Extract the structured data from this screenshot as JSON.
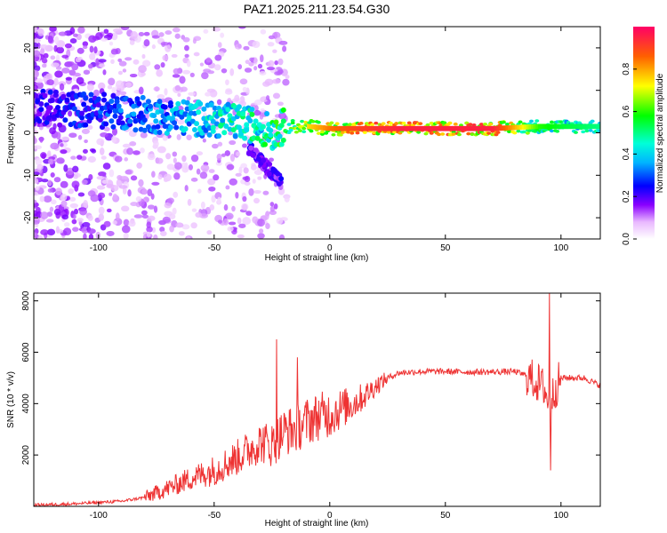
{
  "title": "PAZ1.2025.211.23.54.G30",
  "chart_data": [
    {
      "type": "heatmap",
      "title": "PAZ1.2025.211.23.54.G30",
      "xlabel": "Height of straight line (km)",
      "ylabel": "Frequency (Hz)",
      "xlim": [
        -128,
        117
      ],
      "ylim": [
        -25,
        25
      ],
      "xticks": [
        -100,
        -50,
        0,
        50,
        100
      ],
      "yticks": [
        20,
        10,
        0,
        -10,
        -20
      ],
      "grid": false,
      "colorbar": {
        "label": "Normalized spectral amplitude",
        "range": [
          0,
          1
        ],
        "ticks": [
          0.0,
          0.2,
          0.4,
          0.6,
          0.8
        ],
        "colormap": "rainbow"
      },
      "ridge": {
        "description_points_x": [
          -128,
          -110,
          -90,
          -75,
          -60,
          -50,
          -40,
          -30,
          -25,
          -20,
          -10,
          0,
          10,
          30,
          50,
          70,
          90,
          100,
          117
        ],
        "freq_hz": [
          6,
          5.5,
          5,
          4,
          3.5,
          3,
          2.5,
          1.5,
          0,
          1.5,
          1.5,
          1,
          1,
          1,
          1,
          1,
          1.5,
          1.5,
          1.5
        ],
        "peak_amplitude": [
          0.25,
          0.3,
          0.35,
          0.4,
          0.45,
          0.5,
          0.55,
          0.55,
          0.6,
          0.65,
          0.75,
          0.85,
          0.9,
          0.95,
          0.95,
          0.95,
          0.6,
          0.55,
          0.5
        ]
      }
    },
    {
      "type": "line",
      "xlabel": "Height of straight line (km)",
      "ylabel": "SNR (10 * v/v)",
      "xlim": [
        -128,
        117
      ],
      "ylim": [
        0,
        8300
      ],
      "xticks": [
        -100,
        -50,
        0,
        50,
        100
      ],
      "yticks": [
        2000,
        4000,
        6000,
        8000
      ],
      "grid": false,
      "color": "#ee3333",
      "series": [
        {
          "x": [
            -128,
            -110,
            -90,
            -80,
            -70,
            -60,
            -50,
            -40,
            -30,
            -25,
            -20,
            -15,
            -10,
            -5,
            0,
            5,
            10,
            15,
            20,
            25,
            30,
            40,
            50,
            60,
            70,
            80,
            85,
            90,
            93,
            95,
            97,
            100,
            110,
            117
          ],
          "y": [
            50,
            100,
            200,
            350,
            700,
            1100,
            1400,
            1900,
            2500,
            2400,
            2900,
            3000,
            3300,
            3500,
            3600,
            3800,
            4000,
            4300,
            4700,
            5000,
            5200,
            5250,
            5250,
            5230,
            5230,
            5250,
            5100,
            4800,
            4600,
            3800,
            4500,
            5000,
            5000,
            4700
          ]
        }
      ],
      "spikes": [
        {
          "x": -23,
          "y": 6500
        },
        {
          "x": -14,
          "y": 5800
        },
        {
          "x": 95,
          "y": 8300
        },
        {
          "x": 95.5,
          "y": 1400
        }
      ]
    }
  ]
}
